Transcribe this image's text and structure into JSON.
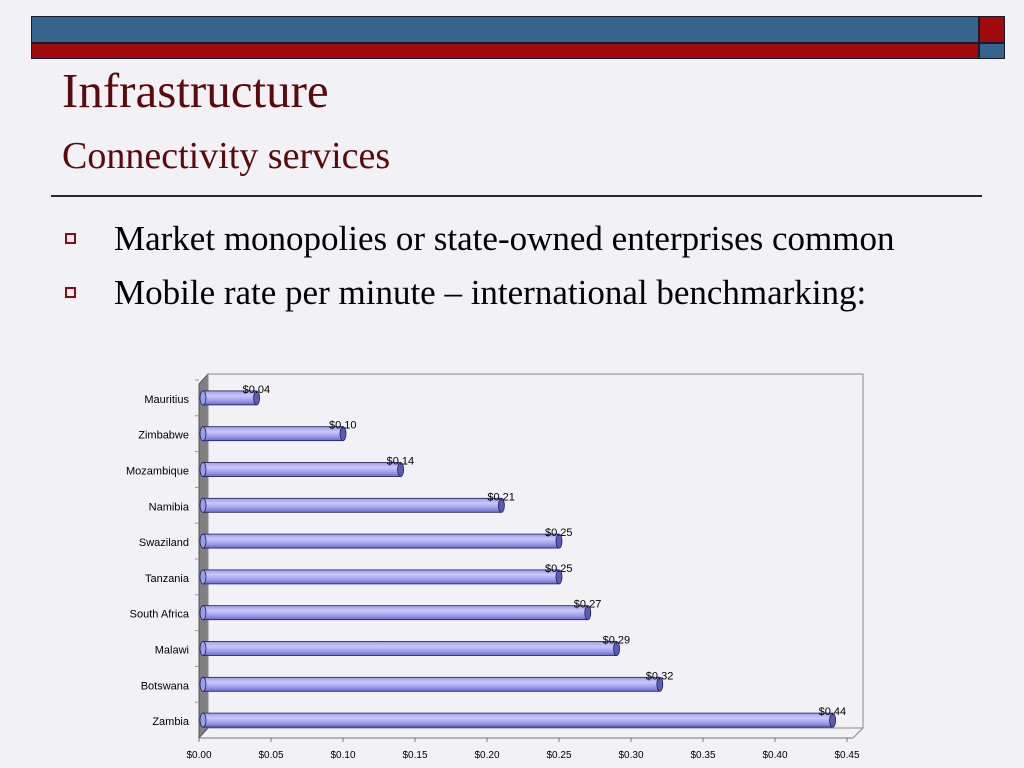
{
  "colors": {
    "band_blue": "#35648f",
    "band_red": "#a00a0d",
    "title_color": "#5a0a0e",
    "bullet_color": "#8b0a10",
    "bar_fill": "#9c9cec",
    "bar_highlight": "#c9c9f8",
    "bar_stroke": "#1e1e52",
    "wall_left": "#808080"
  },
  "slide": {
    "title": "Infrastructure",
    "subtitle": "Connectivity services",
    "bullets": [
      "Market monopolies or state-owned enterprises common",
      "Mobile rate per minute – international benchmarking:"
    ]
  },
  "chart_data": {
    "type": "bar",
    "orientation": "horizontal",
    "categories": [
      "Mauritius",
      "Zimbabwe",
      "Mozambique",
      "Namibia",
      "Swaziland",
      "Tanzania",
      "South Africa",
      "Malawi",
      "Botswana",
      "Zambia"
    ],
    "values": [
      0.04,
      0.1,
      0.14,
      0.21,
      0.25,
      0.25,
      0.27,
      0.29,
      0.32,
      0.44
    ],
    "data_labels": [
      "$0.04",
      "$0.10",
      "$0.14",
      "$0.21",
      "$0.25",
      "$0.25",
      "$0.27",
      "$0.29",
      "$0.32",
      "$0.44"
    ],
    "x_ticks": [
      "$0.00",
      "$0.05",
      "$0.10",
      "$0.15",
      "$0.20",
      "$0.25",
      "$0.30",
      "$0.35",
      "$0.40",
      "$0.45"
    ],
    "xlim": [
      0,
      0.45
    ],
    "title": "",
    "xlabel": "",
    "ylabel": "",
    "grid": false,
    "legend": "none",
    "style": "3d-cylinder"
  }
}
